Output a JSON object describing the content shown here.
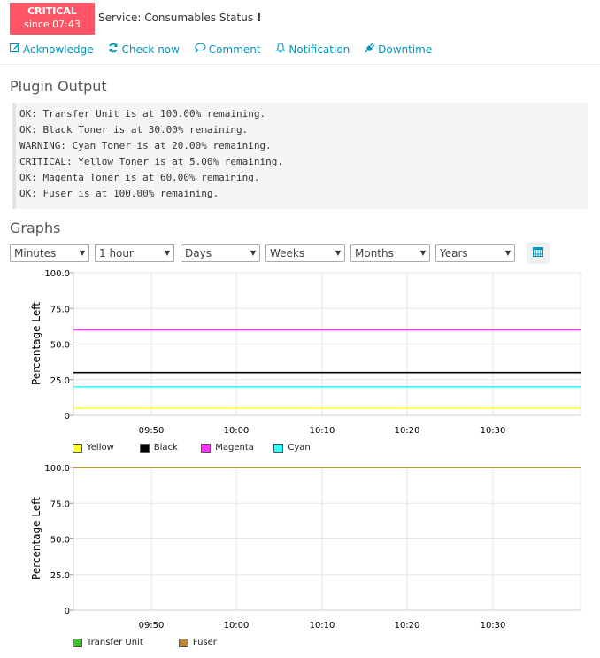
{
  "status": {
    "state": "CRITICAL",
    "since": "since 07:43"
  },
  "service": {
    "title": "Service: Consumables Status",
    "flag_glyph": "!"
  },
  "actions": [
    {
      "label": "Acknowledge",
      "icon": "edit-icon"
    },
    {
      "label": "Check now",
      "icon": "refresh-icon"
    },
    {
      "label": "Comment",
      "icon": "comment-icon"
    },
    {
      "label": "Notification",
      "icon": "bell-icon"
    },
    {
      "label": "Downtime",
      "icon": "plug-icon"
    }
  ],
  "plugin_output": {
    "heading": "Plugin Output",
    "lines": [
      "OK: Transfer Unit is at 100.00% remaining.",
      "OK: Black Toner is at 30.00% remaining.",
      "WARNING: Cyan Toner is at 20.00% remaining.",
      "CRITICAL: Yellow Toner is at 5.00% remaining.",
      "OK: Magenta Toner is at 60.00% remaining.",
      "OK: Fuser is at 100.00% remaining."
    ]
  },
  "graphs": {
    "heading": "Graphs",
    "selects": [
      {
        "name": "minutes",
        "value": "Minutes"
      },
      {
        "name": "hour",
        "value": "1 hour"
      },
      {
        "name": "days",
        "value": "Days"
      },
      {
        "name": "weeks",
        "value": "Weeks"
      },
      {
        "name": "months",
        "value": "Months"
      },
      {
        "name": "years",
        "value": "Years"
      }
    ],
    "calendar_icon": "calendar-icon"
  },
  "chart_data": [
    {
      "type": "line",
      "ylabel": "Percentage Left",
      "ylim": [
        0,
        100
      ],
      "y_ticks": [
        "100.0",
        "75.0",
        "50.0",
        "25.0",
        "0"
      ],
      "x_ticks": [
        "09:50",
        "10:00",
        "10:10",
        "10:20",
        "10:30"
      ],
      "grid": true,
      "legend_position": "bottom-left",
      "series": [
        {
          "name": "Yellow",
          "color": "#ffff33",
          "value": 5
        },
        {
          "name": "Black",
          "color": "#000000",
          "value": 30
        },
        {
          "name": "Magenta",
          "color": "#ff33ff",
          "value": 60
        },
        {
          "name": "Cyan",
          "color": "#33ffff",
          "value": 20
        }
      ]
    },
    {
      "type": "line",
      "ylabel": "Percentage Left",
      "ylim": [
        0,
        100
      ],
      "y_ticks": [
        "100.0",
        "75.0",
        "50.0",
        "25.0",
        "0"
      ],
      "x_ticks": [
        "09:50",
        "10:00",
        "10:10",
        "10:20",
        "10:30"
      ],
      "grid": true,
      "legend_position": "bottom-left",
      "series": [
        {
          "name": "Transfer Unit",
          "color": "#44bb33",
          "value": 100
        },
        {
          "name": "Fuser",
          "color": "#bb8833",
          "value": 100
        }
      ]
    }
  ]
}
